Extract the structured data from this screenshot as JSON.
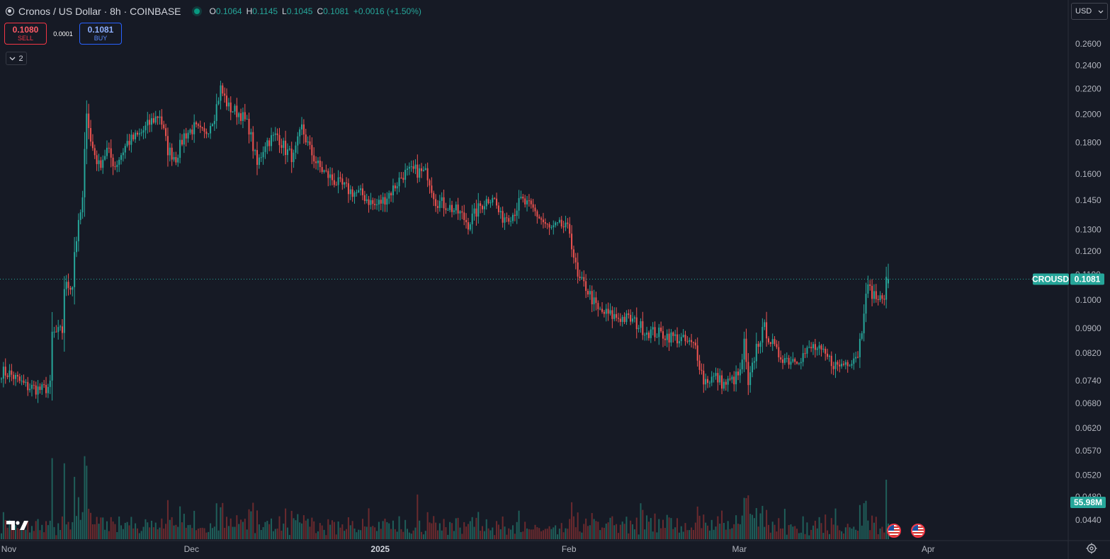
{
  "header": {
    "title": "Cronos / US Dollar · 8h · COINBASE",
    "ohlc": {
      "o_label": "O",
      "o": "0.1064",
      "h_label": "H",
      "h": "0.1145",
      "l_label": "L",
      "l": "0.1045",
      "c_label": "C",
      "c": "0.1081",
      "change": "+0.0016 (+1.50%)"
    }
  },
  "trade": {
    "sell_price": "0.1080",
    "sell_label": "SELL",
    "spread": "0.0001",
    "buy_price": "0.1081",
    "buy_label": "BUY"
  },
  "indicators_toggle": {
    "count": "2"
  },
  "currency": {
    "value": "USD"
  },
  "tags": {
    "symbol": "CROUSD",
    "last_price": "0.1081",
    "volume": "55.98M"
  },
  "icons": {
    "logo": "tradingview-logo-icon",
    "events": "us-flag-icon",
    "settings": "gear-icon",
    "collapse": "chevron-down-icon"
  },
  "colors": {
    "up": "#26a69a",
    "down": "#ef5350",
    "volume_up": "#1f5f5a",
    "volume_down": "#6b2a2e",
    "price_line": "#26a69a"
  },
  "chart_data": {
    "type": "candlestick",
    "interval": "8h",
    "scale": "log",
    "y_ticks": [
      "0.2600",
      "0.2400",
      "0.2200",
      "0.2000",
      "0.1800",
      "0.1600",
      "0.1450",
      "0.1300",
      "0.1200",
      "0.1100",
      "0.1000",
      "0.0900",
      "0.0820",
      "0.0740",
      "0.0680",
      "0.0620",
      "0.0570",
      "0.0520",
      "0.0480",
      "0.0440"
    ],
    "x_ticks": [
      {
        "label": "Nov",
        "bold": false,
        "index": 4
      },
      {
        "label": "Dec",
        "bold": false,
        "index": 94
      },
      {
        "label": "2025",
        "bold": true,
        "index": 187
      },
      {
        "label": "Feb",
        "bold": false,
        "index": 280
      },
      {
        "label": "Mar",
        "bold": false,
        "index": 364
      },
      {
        "label": "Apr",
        "bold": false,
        "index": 457
      }
    ],
    "last_price": 0.1081,
    "total_bars": 448,
    "anchors": [
      [
        0,
        0.0765
      ],
      [
        4,
        0.076
      ],
      [
        12,
        0.0725
      ],
      [
        20,
        0.0715
      ],
      [
        24,
        0.0725
      ],
      [
        25,
        0.088
      ],
      [
        30,
        0.089
      ],
      [
        31,
        0.105
      ],
      [
        35,
        0.106
      ],
      [
        36,
        0.12
      ],
      [
        40,
        0.145
      ],
      [
        42,
        0.205
      ],
      [
        44,
        0.18
      ],
      [
        48,
        0.165
      ],
      [
        52,
        0.175
      ],
      [
        56,
        0.165
      ],
      [
        62,
        0.18
      ],
      [
        68,
        0.185
      ],
      [
        74,
        0.195
      ],
      [
        78,
        0.2
      ],
      [
        82,
        0.175
      ],
      [
        86,
        0.17
      ],
      [
        90,
        0.185
      ],
      [
        95,
        0.19
      ],
      [
        100,
        0.185
      ],
      [
        105,
        0.2
      ],
      [
        108,
        0.22
      ],
      [
        112,
        0.205
      ],
      [
        118,
        0.2
      ],
      [
        122,
        0.19
      ],
      [
        126,
        0.165
      ],
      [
        130,
        0.18
      ],
      [
        136,
        0.185
      ],
      [
        140,
        0.175
      ],
      [
        144,
        0.17
      ],
      [
        148,
        0.19
      ],
      [
        152,
        0.175
      ],
      [
        156,
        0.165
      ],
      [
        160,
        0.16
      ],
      [
        165,
        0.155
      ],
      [
        172,
        0.15
      ],
      [
        178,
        0.148
      ],
      [
        184,
        0.142
      ],
      [
        188,
        0.145
      ],
      [
        192,
        0.15
      ],
      [
        198,
        0.16
      ],
      [
        204,
        0.162
      ],
      [
        210,
        0.16
      ],
      [
        214,
        0.145
      ],
      [
        220,
        0.142
      ],
      [
        226,
        0.138
      ],
      [
        230,
        0.133
      ],
      [
        236,
        0.142
      ],
      [
        242,
        0.148
      ],
      [
        246,
        0.136
      ],
      [
        252,
        0.138
      ],
      [
        256,
        0.145
      ],
      [
        262,
        0.14
      ],
      [
        266,
        0.135
      ],
      [
        270,
        0.13
      ],
      [
        276,
        0.132
      ],
      [
        280,
        0.129
      ],
      [
        284,
        0.108
      ],
      [
        288,
        0.105
      ],
      [
        294,
        0.096
      ],
      [
        302,
        0.094
      ],
      [
        310,
        0.093
      ],
      [
        318,
        0.089
      ],
      [
        326,
        0.088
      ],
      [
        334,
        0.0865
      ],
      [
        342,
        0.084
      ],
      [
        346,
        0.074
      ],
      [
        352,
        0.075
      ],
      [
        356,
        0.073
      ],
      [
        360,
        0.074
      ],
      [
        364,
        0.076
      ],
      [
        366,
        0.085
      ],
      [
        368,
        0.072
      ],
      [
        372,
        0.084
      ],
      [
        376,
        0.09
      ],
      [
        382,
        0.082
      ],
      [
        388,
        0.08
      ],
      [
        394,
        0.081
      ],
      [
        400,
        0.084
      ],
      [
        406,
        0.081
      ],
      [
        412,
        0.078
      ],
      [
        418,
        0.08
      ],
      [
        422,
        0.082
      ],
      [
        424,
        0.09
      ],
      [
        426,
        0.105
      ],
      [
        430,
        0.102
      ],
      [
        434,
        0.099
      ],
      [
        436,
        0.1064
      ],
      [
        437,
        0.1081
      ]
    ]
  }
}
